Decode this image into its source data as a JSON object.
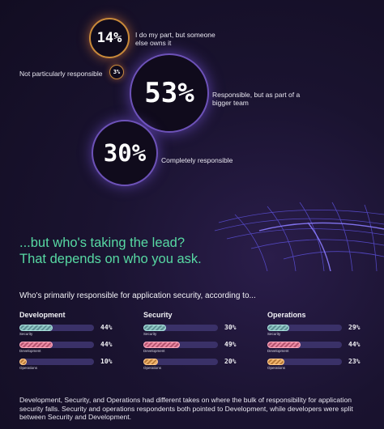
{
  "bubbles": {
    "b14": {
      "value": "14%",
      "label": "I do my part, but someone else owns it"
    },
    "b3": {
      "value": "3%",
      "label": "Not particularly responsible"
    },
    "b53": {
      "value": "53%",
      "label": "Responsible, but as part of a bigger team"
    },
    "b30": {
      "value": "30%",
      "label": "Completely responsible"
    }
  },
  "headline": {
    "line1": "...but who's taking the lead?",
    "line2": "That depends on who you ask."
  },
  "subquestion": "Who's primarily responsible for application security, according to...",
  "footer": "Development, Security, and Operations had different takes on where the bulk of responsibility for application security falls. Security and operations respondents both pointed to Development, while developers were split between Security and Development.",
  "colors": {
    "accent_green": "#57d9a3",
    "security": "#8fc6c3",
    "development": "#ea8aa3",
    "operations": "#f0b46d",
    "track": "#3a3168",
    "bubble_orange": "#c98a3a",
    "bubble_purple": "#6d52b8"
  },
  "chart_data": [
    {
      "type": "bubble",
      "categories": [
        "I do my part, but someone else owns it",
        "Not particularly responsible",
        "Responsible, but as part of a bigger team",
        "Completely responsible"
      ],
      "values": [
        14,
        3,
        53,
        30
      ]
    },
    {
      "type": "bar",
      "groups": [
        {
          "name": "Development",
          "series": [
            {
              "name": "Security",
              "value": 44
            },
            {
              "name": "Development",
              "value": 44
            },
            {
              "name": "Operations",
              "value": 10
            }
          ]
        },
        {
          "name": "Security",
          "series": [
            {
              "name": "Security",
              "value": 30
            },
            {
              "name": "Development",
              "value": 49
            },
            {
              "name": "Operations",
              "value": 20
            }
          ]
        },
        {
          "name": "Operations",
          "series": [
            {
              "name": "Security",
              "value": 29
            },
            {
              "name": "Development",
              "value": 44
            },
            {
              "name": "Operations",
              "value": 23
            }
          ]
        }
      ],
      "ylim": [
        0,
        100
      ]
    }
  ]
}
